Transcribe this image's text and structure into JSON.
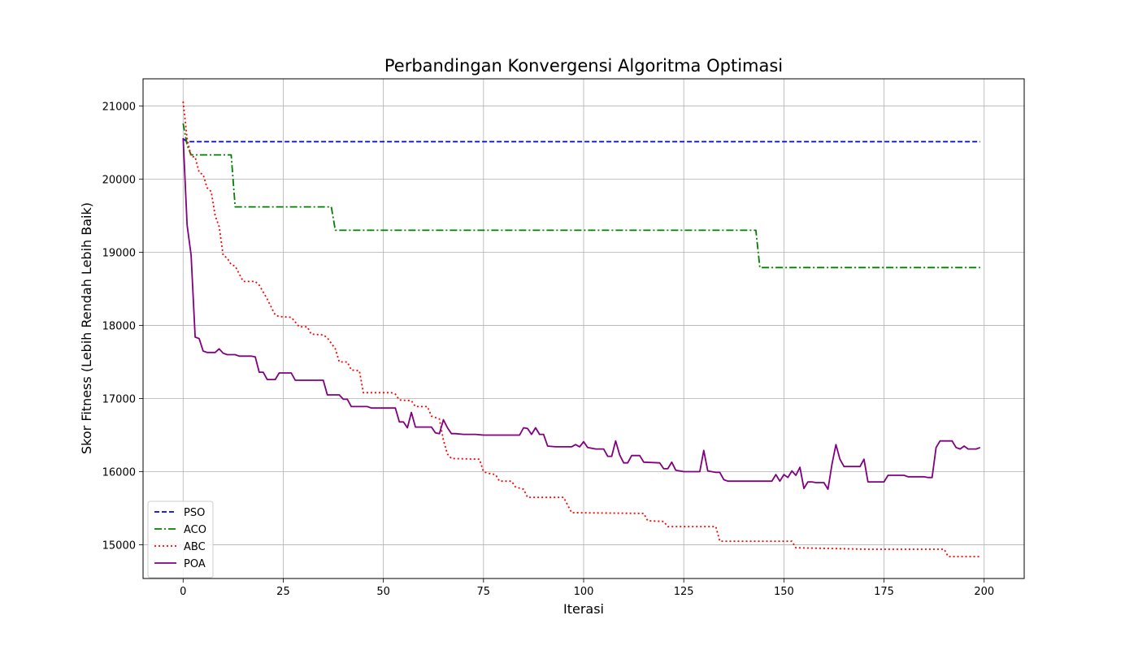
{
  "chart_data": {
    "type": "line",
    "title": "Perbandingan Konvergensi Algoritma Optimasi",
    "xlabel": "Iterasi",
    "ylabel": "Skor Fitness (Lebih Rendah Lebih Baik)",
    "xlim": [
      -10,
      210
    ],
    "ylim": [
      14540,
      21370
    ],
    "xticks": [
      0,
      25,
      50,
      75,
      100,
      125,
      150,
      175,
      200
    ],
    "yticks": [
      15000,
      16000,
      17000,
      18000,
      19000,
      20000,
      21000
    ],
    "grid": true,
    "legend_position": "lower-left",
    "series": [
      {
        "name": "PSO",
        "color": "#0000ff",
        "style": "dashed",
        "points": [
          [
            0,
            20550
          ],
          [
            1,
            20510
          ],
          [
            199,
            20510
          ]
        ]
      },
      {
        "name": "ACO",
        "color": "#008000",
        "style": "dashdot",
        "points": [
          [
            0,
            20760
          ],
          [
            1,
            20460
          ],
          [
            2,
            20330
          ],
          [
            12,
            20330
          ],
          [
            13,
            19620
          ],
          [
            37,
            19620
          ],
          [
            38,
            19300
          ],
          [
            143,
            19300
          ],
          [
            144,
            18790
          ],
          [
            199,
            18790
          ]
        ]
      },
      {
        "name": "ABC",
        "color": "#ff0000",
        "style": "dotted",
        "points": [
          [
            0,
            21060
          ],
          [
            1,
            20550
          ],
          [
            2,
            20310
          ],
          [
            3,
            20300
          ],
          [
            4,
            20090
          ],
          [
            5,
            20060
          ],
          [
            6,
            19880
          ],
          [
            7,
            19830
          ],
          [
            8,
            19500
          ],
          [
            9,
            19350
          ],
          [
            10,
            18960
          ],
          [
            11,
            18920
          ],
          [
            12,
            18830
          ],
          [
            13,
            18810
          ],
          [
            15,
            18600
          ],
          [
            18,
            18600
          ],
          [
            19,
            18550
          ],
          [
            21,
            18360
          ],
          [
            23,
            18140
          ],
          [
            24,
            18120
          ],
          [
            27,
            18110
          ],
          [
            29,
            17980
          ],
          [
            31,
            17980
          ],
          [
            32,
            17880
          ],
          [
            35,
            17870
          ],
          [
            36,
            17830
          ],
          [
            38,
            17680
          ],
          [
            39,
            17500
          ],
          [
            41,
            17500
          ],
          [
            42,
            17390
          ],
          [
            44,
            17380
          ],
          [
            45,
            17080
          ],
          [
            52,
            17080
          ],
          [
            53,
            17060
          ],
          [
            54,
            16980
          ],
          [
            57,
            16970
          ],
          [
            58,
            16890
          ],
          [
            61,
            16890
          ],
          [
            62,
            16760
          ],
          [
            64,
            16720
          ],
          [
            65,
            16430
          ],
          [
            66,
            16240
          ],
          [
            67,
            16180
          ],
          [
            74,
            16170
          ],
          [
            75,
            16000
          ],
          [
            76,
            15980
          ],
          [
            78,
            15960
          ],
          [
            79,
            15870
          ],
          [
            82,
            15870
          ],
          [
            83,
            15790
          ],
          [
            85,
            15760
          ],
          [
            86,
            15650
          ],
          [
            95,
            15650
          ],
          [
            97,
            15440
          ],
          [
            115,
            15430
          ],
          [
            116,
            15330
          ],
          [
            120,
            15320
          ],
          [
            121,
            15250
          ],
          [
            133,
            15250
          ],
          [
            134,
            15050
          ],
          [
            152,
            15050
          ],
          [
            153,
            14960
          ],
          [
            162,
            14950
          ],
          [
            171,
            14940
          ],
          [
            190,
            14940
          ],
          [
            191,
            14840
          ],
          [
            199,
            14840
          ]
        ]
      },
      {
        "name": "POA",
        "color": "#800080",
        "style": "solid",
        "points": [
          [
            0,
            20560
          ],
          [
            1,
            19370
          ],
          [
            2,
            18960
          ],
          [
            3,
            17840
          ],
          [
            4,
            17820
          ],
          [
            5,
            17650
          ],
          [
            6,
            17630
          ],
          [
            8,
            17630
          ],
          [
            9,
            17680
          ],
          [
            10,
            17620
          ],
          [
            11,
            17600
          ],
          [
            13,
            17600
          ],
          [
            14,
            17580
          ],
          [
            17,
            17580
          ],
          [
            18,
            17570
          ],
          [
            19,
            17360
          ],
          [
            20,
            17360
          ],
          [
            21,
            17260
          ],
          [
            23,
            17260
          ],
          [
            24,
            17350
          ],
          [
            27,
            17350
          ],
          [
            28,
            17250
          ],
          [
            35,
            17250
          ],
          [
            36,
            17050
          ],
          [
            39,
            17050
          ],
          [
            40,
            16990
          ],
          [
            41,
            16990
          ],
          [
            42,
            16890
          ],
          [
            46,
            16890
          ],
          [
            47,
            16870
          ],
          [
            53,
            16870
          ],
          [
            54,
            16680
          ],
          [
            55,
            16680
          ],
          [
            56,
            16600
          ],
          [
            57,
            16810
          ],
          [
            58,
            16610
          ],
          [
            62,
            16610
          ],
          [
            63,
            16530
          ],
          [
            64,
            16520
          ],
          [
            65,
            16710
          ],
          [
            66,
            16600
          ],
          [
            67,
            16520
          ],
          [
            68,
            16520
          ],
          [
            70,
            16510
          ],
          [
            73,
            16510
          ],
          [
            75,
            16500
          ],
          [
            84,
            16500
          ],
          [
            85,
            16600
          ],
          [
            86,
            16590
          ],
          [
            87,
            16510
          ],
          [
            88,
            16600
          ],
          [
            89,
            16510
          ],
          [
            90,
            16510
          ],
          [
            91,
            16350
          ],
          [
            93,
            16340
          ],
          [
            97,
            16340
          ],
          [
            98,
            16370
          ],
          [
            99,
            16340
          ],
          [
            100,
            16410
          ],
          [
            101,
            16330
          ],
          [
            103,
            16310
          ],
          [
            105,
            16310
          ],
          [
            106,
            16210
          ],
          [
            107,
            16210
          ],
          [
            108,
            16420
          ],
          [
            109,
            16230
          ],
          [
            110,
            16120
          ],
          [
            111,
            16120
          ],
          [
            112,
            16220
          ],
          [
            114,
            16220
          ],
          [
            115,
            16130
          ],
          [
            119,
            16120
          ],
          [
            120,
            16040
          ],
          [
            121,
            16040
          ],
          [
            122,
            16130
          ],
          [
            123,
            16020
          ],
          [
            125,
            16000
          ],
          [
            129,
            16000
          ],
          [
            130,
            16290
          ],
          [
            131,
            16010
          ],
          [
            133,
            15990
          ],
          [
            134,
            15990
          ],
          [
            135,
            15890
          ],
          [
            136,
            15870
          ],
          [
            147,
            15870
          ],
          [
            148,
            15960
          ],
          [
            149,
            15870
          ],
          [
            150,
            15960
          ],
          [
            151,
            15920
          ],
          [
            152,
            16010
          ],
          [
            153,
            15950
          ],
          [
            154,
            16060
          ],
          [
            155,
            15770
          ],
          [
            156,
            15860
          ],
          [
            157,
            15860
          ],
          [
            158,
            15850
          ],
          [
            160,
            15850
          ],
          [
            161,
            15760
          ],
          [
            162,
            16100
          ],
          [
            163,
            16370
          ],
          [
            164,
            16170
          ],
          [
            165,
            16070
          ],
          [
            169,
            16070
          ],
          [
            170,
            16170
          ],
          [
            171,
            15860
          ],
          [
            175,
            15860
          ],
          [
            176,
            15950
          ],
          [
            180,
            15950
          ],
          [
            181,
            15930
          ],
          [
            185,
            15930
          ],
          [
            186,
            15920
          ],
          [
            187,
            15920
          ],
          [
            188,
            16330
          ],
          [
            189,
            16420
          ],
          [
            192,
            16420
          ],
          [
            193,
            16330
          ],
          [
            194,
            16310
          ],
          [
            195,
            16350
          ],
          [
            196,
            16310
          ],
          [
            198,
            16310
          ],
          [
            199,
            16330
          ]
        ]
      }
    ]
  }
}
